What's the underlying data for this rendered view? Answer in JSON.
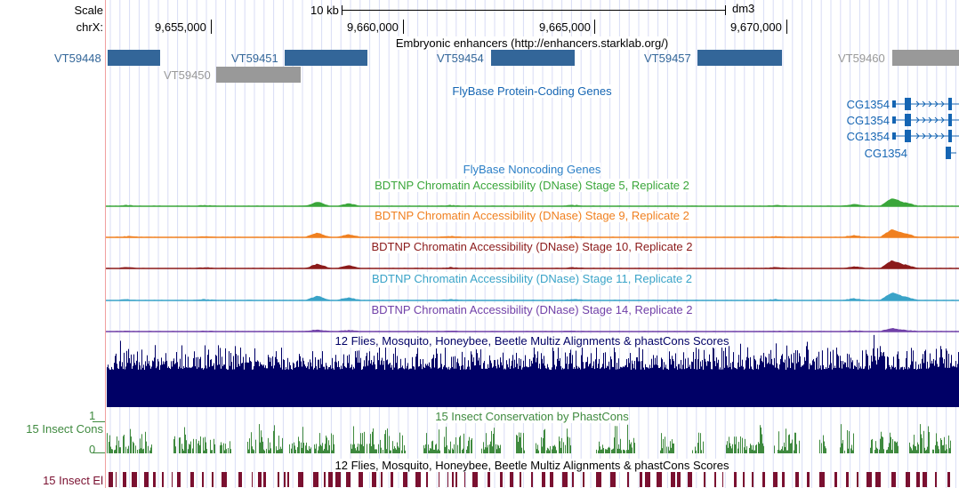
{
  "ruler": {
    "scale_label": "Scale",
    "chrom_label": "chrX:",
    "scale_bar_label": "10 kb",
    "assembly": "dm3",
    "positions": [
      "9,655,000",
      "9,660,000",
      "9,665,000",
      "9,670,000"
    ]
  },
  "enhancers": {
    "title": "Embryonic enhancers (http://enhancers.starklab.org/)",
    "items": [
      {
        "name": "VT59448",
        "color": "#336699"
      },
      {
        "name": "VT59450",
        "color": "#999999"
      },
      {
        "name": "VT59451",
        "color": "#336699"
      },
      {
        "name": "VT59454",
        "color": "#336699"
      },
      {
        "name": "VT59457",
        "color": "#336699"
      },
      {
        "name": "VT59460",
        "color": "#999999"
      }
    ]
  },
  "genes": {
    "title": "FlyBase Protein-Coding Genes",
    "color": "#1565b3",
    "items": [
      {
        "name": "CG1354"
      },
      {
        "name": "CG1354"
      },
      {
        "name": "CG1354"
      },
      {
        "name": "CG1354"
      }
    ]
  },
  "noncoding": {
    "title": "FlyBase Noncoding Genes",
    "color": "#2b7fc7"
  },
  "dnase": [
    {
      "title": "BDTNP Chromatin Accessibility (DNase) Stage 5, Replicate 2",
      "color": "#3aa63a"
    },
    {
      "title": "BDTNP Chromatin Accessibility (DNase) Stage 9, Replicate 2",
      "color": "#f08020"
    },
    {
      "title": "BDTNP Chromatin Accessibility (DNase) Stage 10, Replicate 2",
      "color": "#8b1a1a"
    },
    {
      "title": "BDTNP Chromatin Accessibility (DNase) Stage 11, Replicate 2",
      "color": "#3aa3c8"
    },
    {
      "title": "BDTNP Chromatin Accessibility (DNase) Stage 14, Replicate 2",
      "color": "#7040a8"
    }
  ],
  "multiz": {
    "title": "12 Flies, Mosquito, Honeybee, Beetle Multiz Alignments & phastCons Scores",
    "color": "#000066"
  },
  "cons": {
    "title": "15 Insect Conservation by PhastCons",
    "side_label": "15 Insect Cons",
    "y_max": "1",
    "y_min": "0",
    "color": "#3f8a3f"
  },
  "elements": {
    "title": "12 Flies, Mosquito, Honeybee, Beetle Multiz Alignments & phastCons Scores",
    "side_label": "15 Insect El",
    "color": "#7a1030"
  },
  "colors": {
    "grid_line": "#d8dcf5",
    "left_border": "#f0a0a0",
    "ruler": "#000000"
  }
}
